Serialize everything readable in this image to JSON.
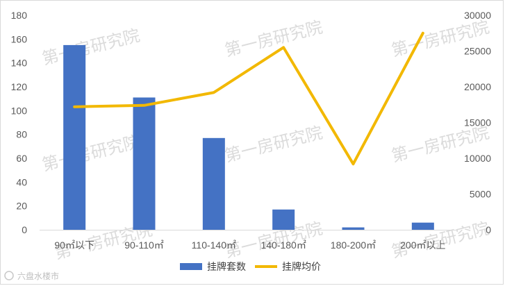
{
  "chart_data": {
    "type": "bar",
    "categories": [
      "90㎡以下",
      "90-110㎡",
      "110-140㎡",
      "140-180㎡",
      "180-200㎡",
      "200㎡以上"
    ],
    "series": [
      {
        "name": "挂牌套数",
        "type": "bar",
        "axis": "left",
        "color": "#4472c4",
        "values": [
          155,
          111,
          77,
          17,
          2,
          6
        ]
      },
      {
        "name": "挂牌均价",
        "type": "line",
        "axis": "right",
        "color": "#f2b800",
        "values": [
          17200,
          17400,
          19200,
          25500,
          9200,
          27500
        ]
      }
    ],
    "left_axis": {
      "min": 0,
      "max": 180,
      "step": 20,
      "ticks": [
        "0",
        "20",
        "40",
        "60",
        "80",
        "100",
        "120",
        "140",
        "160",
        "180"
      ]
    },
    "right_axis": {
      "min": 0,
      "max": 30000,
      "step": 5000,
      "ticks": [
        "0",
        "5000",
        "10000",
        "15000",
        "20000",
        "25000",
        "30000"
      ]
    },
    "grid": false,
    "legend": "bottom-center"
  },
  "watermark": "第一房研究院",
  "source_label": "六盘水楼市"
}
